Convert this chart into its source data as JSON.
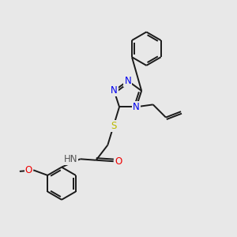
{
  "background_color": "#e8e8e8",
  "bond_color": "#1a1a1a",
  "atom_colors": {
    "N": "#0000ee",
    "O": "#ee0000",
    "S": "#bbbb00",
    "H_label": "#555555",
    "C": "#1a1a1a"
  },
  "font_size_atom": 8.5,
  "lw": 1.4,
  "fig_width": 3.0,
  "fig_height": 3.0,
  "dpi": 100,
  "xlim": [
    0,
    10
  ],
  "ylim": [
    0,
    10
  ]
}
